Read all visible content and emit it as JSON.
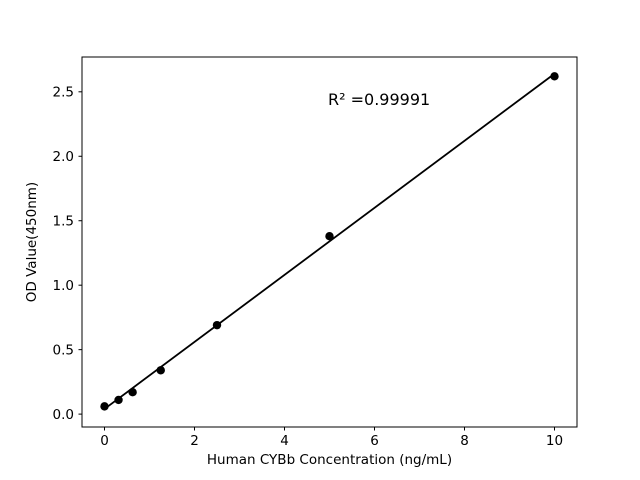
{
  "figure": {
    "background": "#ffffff"
  },
  "chart_data": {
    "type": "scatter",
    "title": "",
    "xlabel": "Human CYBb Concentration (ng/mL)",
    "ylabel": "OD Value(450nm)",
    "x": [
      0,
      0.3125,
      0.625,
      1.25,
      2.5,
      5,
      10
    ],
    "y": [
      0.06,
      0.11,
      0.17,
      0.34,
      0.69,
      1.38,
      2.62
    ],
    "fit_line": {
      "x": [
        0,
        10
      ],
      "y": [
        0.04,
        2.64
      ]
    },
    "annotation": {
      "text": "R² =0.99991"
    },
    "x_ticks": {
      "values": [
        0,
        2,
        4,
        6,
        8,
        10
      ],
      "labels": [
        "0",
        "2",
        "4",
        "6",
        "8",
        "10"
      ]
    },
    "y_ticks": {
      "values": [
        0,
        0.5,
        1,
        1.5,
        2,
        2.5
      ],
      "labels": [
        "0.0",
        "0.5",
        "1.0",
        "1.5",
        "2.0",
        "2.5"
      ]
    },
    "xlim": [
      -0.5,
      10.5
    ],
    "ylim": [
      -0.1,
      2.77
    ],
    "grid": false,
    "legend_position": "none",
    "marker_color": "#000000",
    "line_color": "#000000",
    "axis_color": "#000000",
    "tick_label_color": "#000000"
  }
}
